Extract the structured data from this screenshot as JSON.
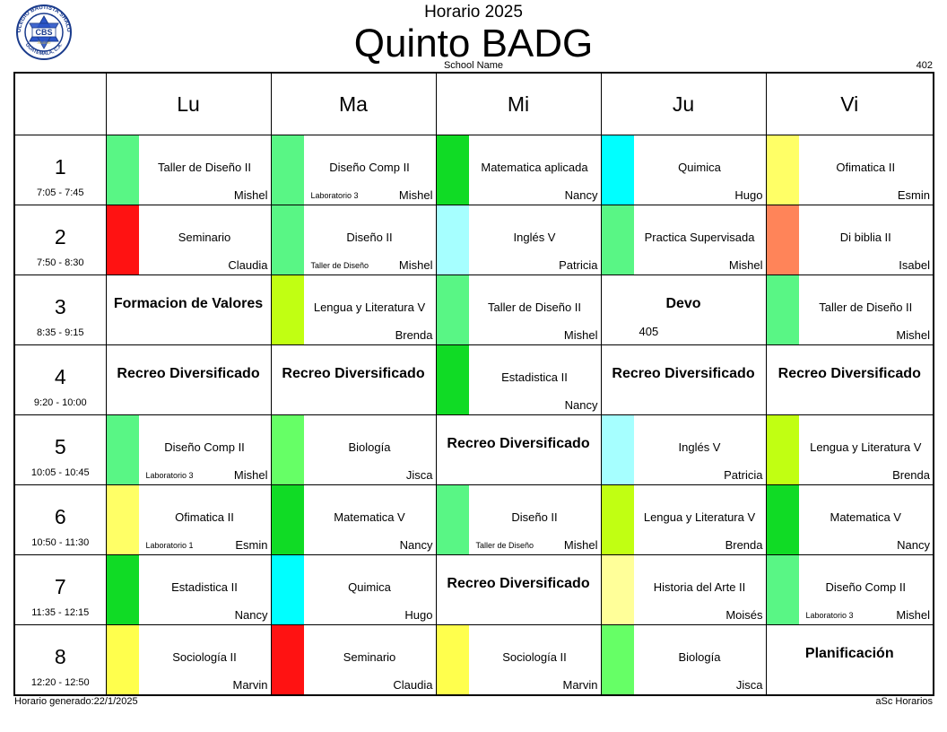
{
  "header": {
    "subtitle": "Horario 2025",
    "title": "Quinto BADG",
    "school_name": "School Name",
    "room": "402",
    "logo": {
      "ring_text_top": "COLEGIO BAUTISTA SHALOM",
      "ring_text_bottom": "GUATEMALA, C.A.",
      "emblem_text": "CBS",
      "emblem_script": "Shalom"
    }
  },
  "days": [
    "Lu",
    "Ma",
    "Mi",
    "Ju",
    "Vi"
  ],
  "periods": [
    {
      "number": "1",
      "time": "7:05 - 7:45",
      "cells": [
        {
          "subject": "Taller de Diseño II",
          "teacher": "Mishel",
          "room": "",
          "color": "#59F685"
        },
        {
          "subject": "Diseño Comp II",
          "teacher": "Mishel",
          "room": "Laboratorio 3",
          "color": "#59F685"
        },
        {
          "subject": "Matematica aplicada",
          "teacher": "Nancy",
          "room": "",
          "color": "#10DB25"
        },
        {
          "subject": "Quimica",
          "teacher": "Hugo",
          "room": "",
          "color": "#00FFFF"
        },
        {
          "subject": "Ofimatica II",
          "teacher": "Esmin",
          "room": "",
          "color": "#FFFF66"
        }
      ]
    },
    {
      "number": "2",
      "time": "7:50 - 8:30",
      "cells": [
        {
          "subject": "Seminario",
          "teacher": "Claudia",
          "room": "",
          "color": "#FF1212"
        },
        {
          "subject": "Diseño II",
          "teacher": "Mishel",
          "room": "Taller de Diseño",
          "color": "#59F685"
        },
        {
          "subject": "Inglés V",
          "teacher": "Patricia",
          "room": "",
          "color": "#A6FFFF"
        },
        {
          "subject": "Practica Supervisada",
          "teacher": "Mishel",
          "room": "",
          "color": "#59F685"
        },
        {
          "subject": "Di biblia II",
          "teacher": "Isabel",
          "room": "",
          "color": "#FF8459"
        }
      ]
    },
    {
      "number": "3",
      "time": "8:35 - 9:15",
      "cells": [
        {
          "subject": "Formacion de Valores",
          "teacher": "",
          "room": "",
          "color": "",
          "bold": true
        },
        {
          "subject": "Lengua y Literatura V",
          "teacher": "Brenda",
          "room": "",
          "color": "#C1FF12"
        },
        {
          "subject": "Taller de Diseño II",
          "teacher": "Mishel",
          "room": "",
          "color": "#59F685"
        },
        {
          "subject": "Devo",
          "teacher": "",
          "room": "405",
          "color": "",
          "bold": true
        },
        {
          "subject": "Taller de Diseño II",
          "teacher": "Mishel",
          "room": "",
          "color": "#59F685"
        }
      ]
    },
    {
      "number": "4",
      "time": "9:20 - 10:00",
      "cells": [
        {
          "subject": "Recreo Diversificado",
          "teacher": "",
          "room": "",
          "color": "",
          "bold": true
        },
        {
          "subject": "Recreo Diversificado",
          "teacher": "",
          "room": "",
          "color": "",
          "bold": true
        },
        {
          "subject": "Estadistica II",
          "teacher": "Nancy",
          "room": "",
          "color": "#10DB25"
        },
        {
          "subject": "Recreo Diversificado",
          "teacher": "",
          "room": "",
          "color": "",
          "bold": true
        },
        {
          "subject": "Recreo Diversificado",
          "teacher": "",
          "room": "",
          "color": "",
          "bold": true
        }
      ]
    },
    {
      "number": "5",
      "time": "10:05 - 10:45",
      "cells": [
        {
          "subject": "Diseño Comp II",
          "teacher": "Mishel",
          "room": "Laboratorio 3",
          "color": "#59F685"
        },
        {
          "subject": "Biología",
          "teacher": "Jisca",
          "room": "",
          "color": "#66FF66"
        },
        {
          "subject": "Recreo Diversificado",
          "teacher": "",
          "room": "",
          "color": "",
          "bold": true
        },
        {
          "subject": "Inglés V",
          "teacher": "Patricia",
          "room": "",
          "color": "#A6FFFF"
        },
        {
          "subject": "Lengua y Literatura V",
          "teacher": "Brenda",
          "room": "",
          "color": "#C1FF12"
        }
      ]
    },
    {
      "number": "6",
      "time": "10:50 - 11:30",
      "cells": [
        {
          "subject": "Ofimatica II",
          "teacher": "Esmin",
          "room": "Laboratorio 1",
          "color": "#FFFF66"
        },
        {
          "subject": "Matematica V",
          "teacher": "Nancy",
          "room": "",
          "color": "#10DB25"
        },
        {
          "subject": "Diseño II",
          "teacher": "Mishel",
          "room": "Taller de Diseño",
          "color": "#59F685"
        },
        {
          "subject": "Lengua y Literatura V",
          "teacher": "Brenda",
          "room": "",
          "color": "#C1FF12"
        },
        {
          "subject": "Matematica V",
          "teacher": "Nancy",
          "room": "",
          "color": "#10DB25"
        }
      ]
    },
    {
      "number": "7",
      "time": "11:35 - 12:15",
      "cells": [
        {
          "subject": "Estadistica II",
          "teacher": "Nancy",
          "room": "",
          "color": "#10DB25"
        },
        {
          "subject": "Quimica",
          "teacher": "Hugo",
          "room": "",
          "color": "#00FFFF"
        },
        {
          "subject": "Recreo Diversificado",
          "teacher": "",
          "room": "",
          "color": "",
          "bold": true
        },
        {
          "subject": "Historia del Arte II",
          "teacher": "Moisés",
          "room": "",
          "color": "#FFFF99"
        },
        {
          "subject": "Diseño Comp II",
          "teacher": "Mishel",
          "room": "Laboratorio 3",
          "color": "#59F685"
        }
      ]
    },
    {
      "number": "8",
      "time": "12:20 - 12:50",
      "cells": [
        {
          "subject": "Sociología II",
          "teacher": "Marvin",
          "room": "",
          "color": "#FFFF4D"
        },
        {
          "subject": "Seminario",
          "teacher": "Claudia",
          "room": "",
          "color": "#FF1212"
        },
        {
          "subject": "Sociología II",
          "teacher": "Marvin",
          "room": "",
          "color": "#FFFF4D"
        },
        {
          "subject": "Biología",
          "teacher": "Jisca",
          "room": "",
          "color": "#66FF66"
        },
        {
          "subject": "Planificación",
          "teacher": "",
          "room": "",
          "color": "",
          "bold": true
        }
      ]
    }
  ],
  "footer": {
    "generated": "Horario generado:22/1/2025",
    "software": "aSc Horarios"
  }
}
